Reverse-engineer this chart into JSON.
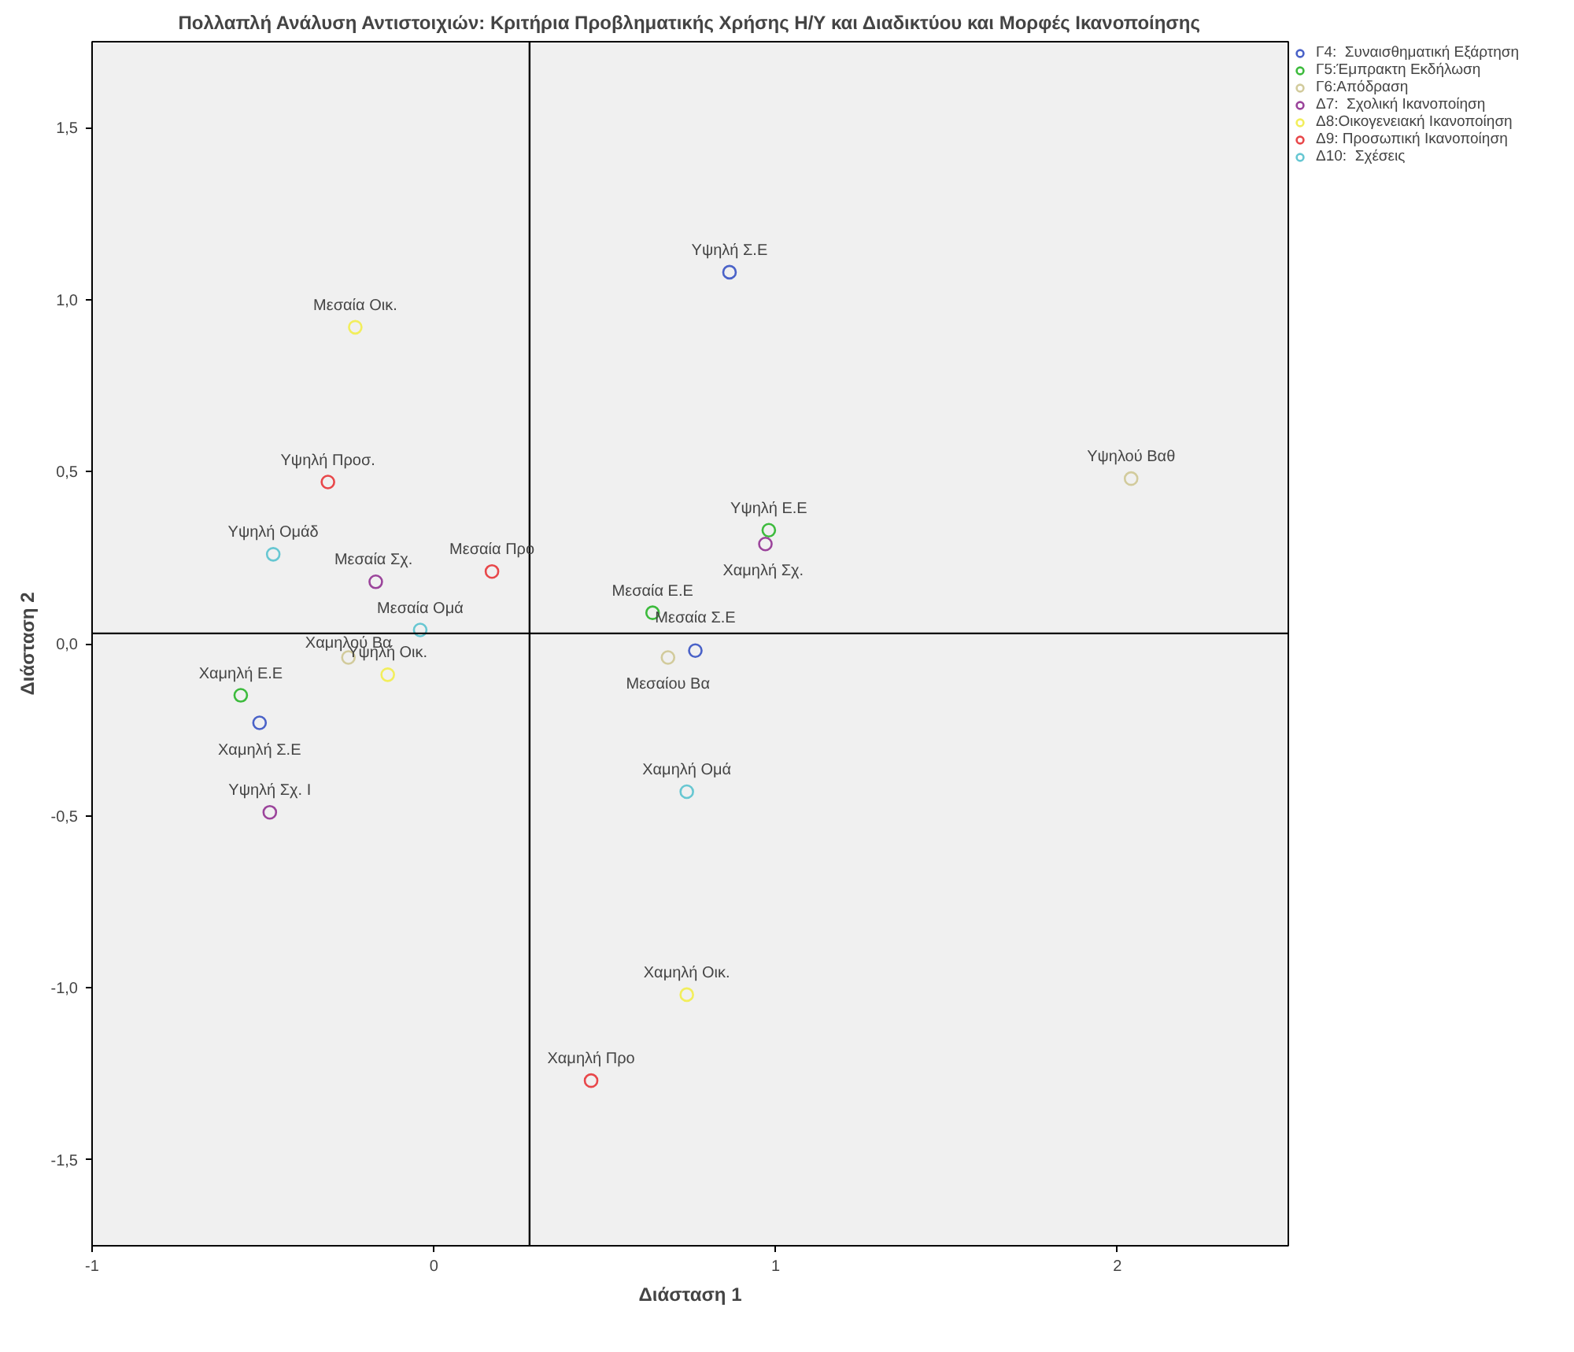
{
  "chart_data": {
    "type": "scatter",
    "title": "Πολλαπλή Ανάλυση Αντιστοιχιών: Κριτήρια Προβληματικής Χρήσης Η/Υ και Διαδικτύου και Μορφές Ικανοποίησης",
    "xlabel": "Διάσταση 1",
    "ylabel": "Διάσταση 2",
    "xlim": [
      -1,
      2.5
    ],
    "ylim": [
      -1.75,
      1.75
    ],
    "xticks": [
      -1,
      0,
      1,
      2
    ],
    "yticks": [
      {
        "value": -1.5,
        "label": "-1,5"
      },
      {
        "value": -1.0,
        "label": "-1,0"
      },
      {
        "value": -0.5,
        "label": "-0,5"
      },
      {
        "value": 0.0,
        "label": "0,0"
      },
      {
        "value": 0.5,
        "label": "0,5"
      },
      {
        "value": 1.0,
        "label": "1,0"
      },
      {
        "value": 1.5,
        "label": "1,5"
      }
    ],
    "grid": false,
    "legend": "top right",
    "marker": "circle",
    "ref_lines": [
      {
        "axis": "x",
        "value": 0.28,
        "label": null
      },
      {
        "axis": "y",
        "value": 0.03,
        "label": null
      }
    ],
    "series": [
      {
        "name": "Γ4:  Συναισθηματική Εξάρτηση",
        "color": "#4a62c8",
        "x": [
          0.865,
          0.765,
          -0.51
        ],
        "values": [
          1.08,
          -0.02,
          -0.23
        ],
        "value_labels": [
          "Υψηλή Σ.Ε",
          "Μεσαία Σ.Ε",
          "Χαμηλή Σ.Ε"
        ]
      },
      {
        "name": "Γ5:Έμπρακτη Εκδήλωση",
        "color": "#3dbb3d",
        "x": [
          0.98,
          0.64,
          -0.565
        ],
        "values": [
          0.33,
          0.09,
          -0.15
        ],
        "value_labels": [
          "Υψηλή Ε.Ε",
          "Μεσαία Ε.Ε",
          "Χαμηλή Ε.Ε"
        ]
      },
      {
        "name": "Γ6:Απόδραση",
        "color": "#d2cb9c",
        "x": [
          2.04,
          0.685,
          -0.25
        ],
        "values": [
          0.48,
          -0.04,
          -0.04
        ],
        "value_labels": [
          "Υψηλού Βαθ",
          "Μεσαίου Βα",
          "Χαμηλού Βα"
        ]
      },
      {
        "name": "Δ7:  Σχολική Ικανοποίηση",
        "color": "#9b449b",
        "x": [
          -0.48,
          -0.17,
          0.97
        ],
        "values": [
          -0.49,
          0.18,
          0.29
        ],
        "value_labels": [
          "Υψηλή Σχ. Ι",
          "Μεσαία  Σχ.",
          "Χαμηλή  Σχ."
        ]
      },
      {
        "name": "Δ8:Οικογενειακή Ικανοποίηση",
        "color": "#f2ee5c",
        "x": [
          -0.23,
          -0.135,
          0.74
        ],
        "values": [
          0.92,
          -0.09,
          -1.02
        ],
        "value_labels": [
          "Μεσαία Οικ.",
          "Υψηλή Οικ.",
          "Χαμηλή Οικ."
        ]
      },
      {
        "name": "Δ9: Προσωπική Ικανοποίηση",
        "color": "#e8474a",
        "x": [
          -0.31,
          0.17,
          0.46
        ],
        "values": [
          0.47,
          0.21,
          -1.27
        ],
        "value_labels": [
          "Υψηλή Προσ.",
          "Μεσαία Προ",
          "Χαμηλή Προ"
        ]
      },
      {
        "name": "Δ10:  Σχέσεις",
        "color": "#67c7d2",
        "x": [
          -0.47,
          -0.04,
          0.74
        ],
        "values": [
          0.26,
          0.04,
          -0.43
        ],
        "value_labels": [
          "Υψηλή Ομάδ",
          "Μεσαία Ομά",
          "Χαμηλή Ομά"
        ]
      }
    ]
  }
}
